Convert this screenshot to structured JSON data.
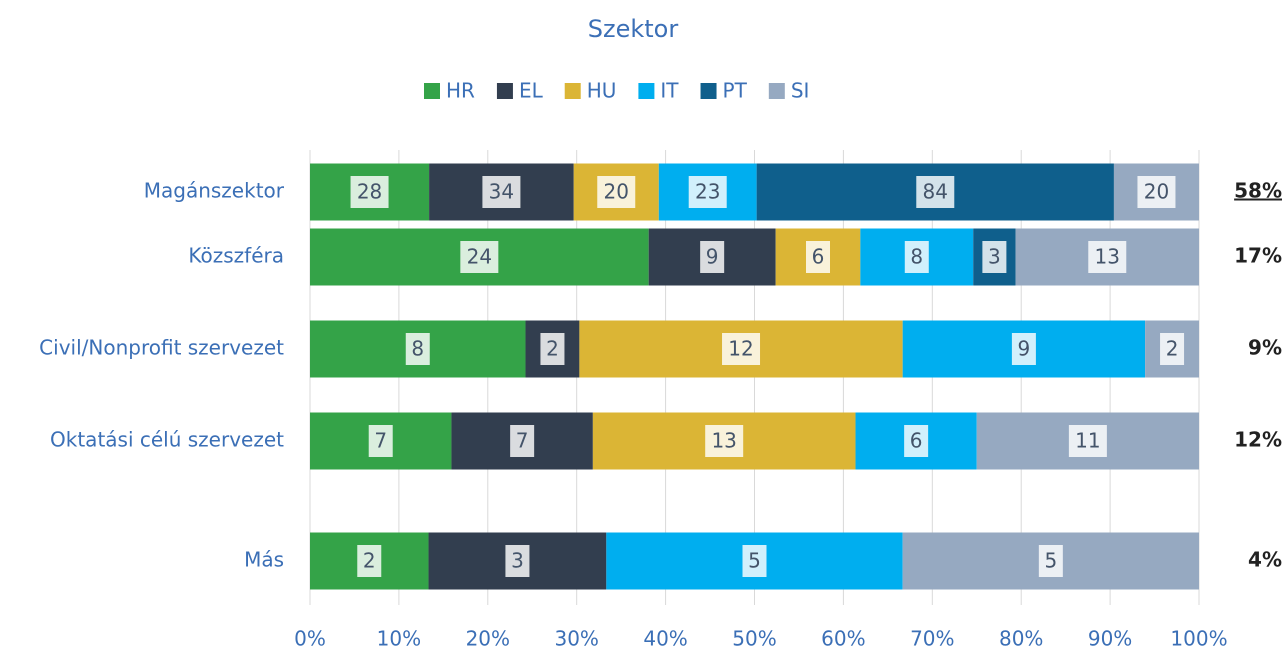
{
  "chart_data": {
    "type": "bar_stacked_100_horizontal",
    "title": "Szektor",
    "categories": [
      "Magánszektor",
      "Közszféra",
      "Civil/Nonprofit szervezet",
      "Oktatási célú szervezet",
      "Más"
    ],
    "series": [
      {
        "name": "HR",
        "color": "#34a348",
        "values": [
          28,
          24,
          8,
          7,
          2
        ]
      },
      {
        "name": "EL",
        "color": "#323e4f",
        "values": [
          34,
          9,
          2,
          7,
          3
        ]
      },
      {
        "name": "HU",
        "color": "#dbb535",
        "values": [
          20,
          6,
          12,
          13,
          null
        ]
      },
      {
        "name": "IT",
        "color": "#00aeef",
        "values": [
          23,
          8,
          9,
          6,
          5
        ]
      },
      {
        "name": "PT",
        "color": "#0f5f8c",
        "values": [
          84,
          3,
          null,
          null,
          null
        ]
      },
      {
        "name": "SI",
        "color": "#96a9c1",
        "values": [
          20,
          13,
          2,
          11,
          5
        ]
      }
    ],
    "share_labels": [
      "58%",
      "17%",
      "9%",
      "12%",
      "4%"
    ],
    "xlim": [
      0,
      100
    ],
    "xticks": [
      {
        "value": 0,
        "label": "0%"
      },
      {
        "value": 10,
        "label": "10%"
      },
      {
        "value": 20,
        "label": "20%"
      },
      {
        "value": 30,
        "label": "30%"
      },
      {
        "value": 40,
        "label": "40%"
      },
      {
        "value": 50,
        "label": "50%"
      },
      {
        "value": 60,
        "label": "60%"
      },
      {
        "value": 70,
        "label": "70%"
      },
      {
        "value": 80,
        "label": "80%"
      },
      {
        "value": 90,
        "label": "90%"
      },
      {
        "value": 100,
        "label": "100%"
      }
    ],
    "grid": true,
    "legend": "top"
  }
}
